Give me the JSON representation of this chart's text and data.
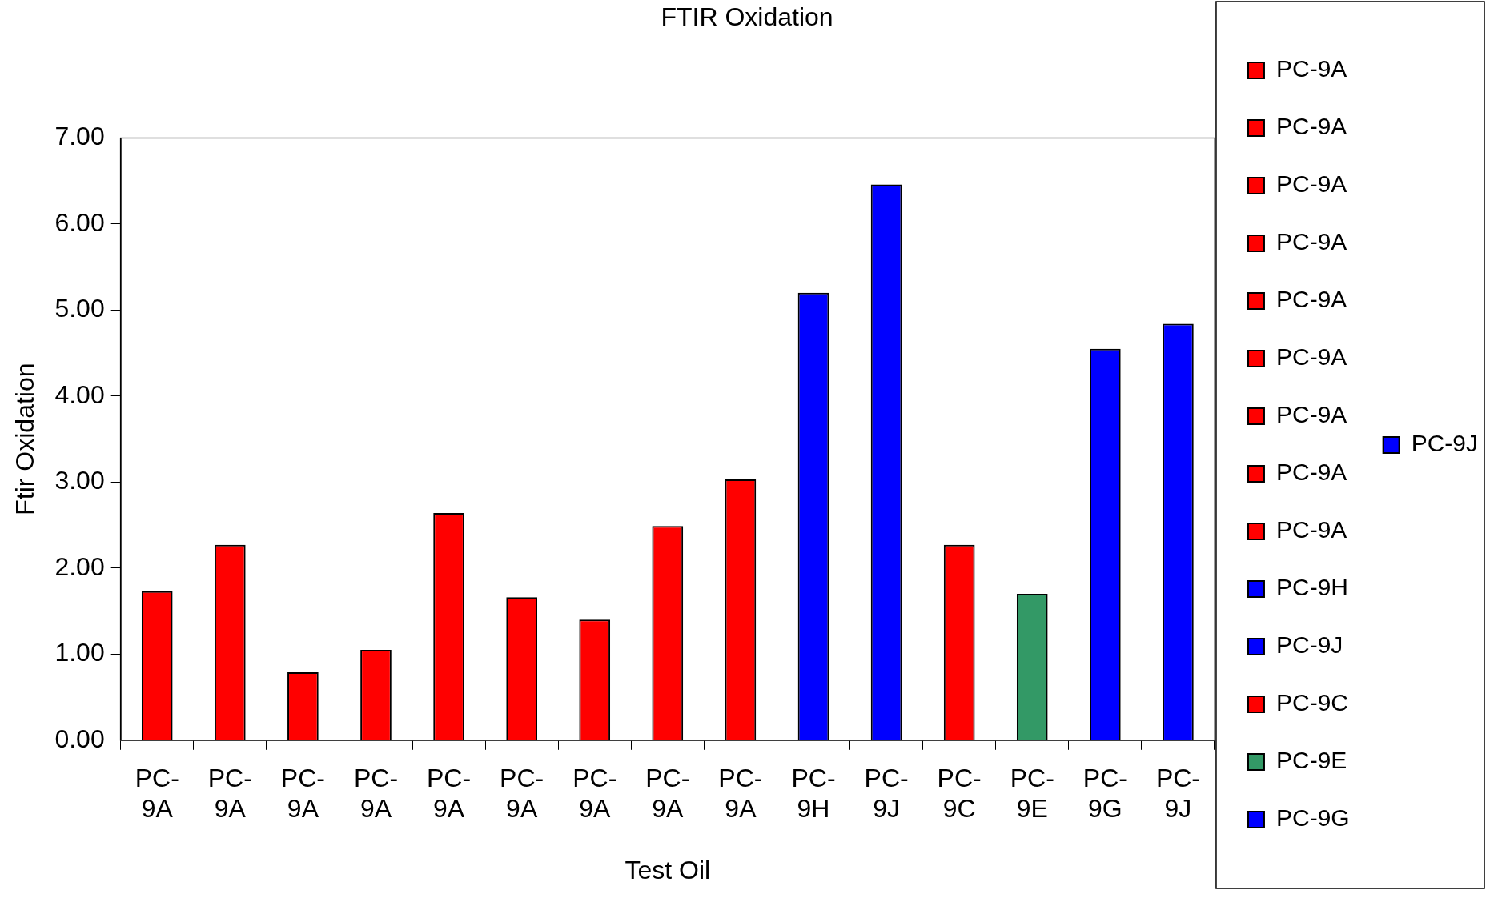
{
  "chart_data": {
    "type": "bar",
    "title": "FTIR Oxidation",
    "xlabel": "Test Oil",
    "ylabel": "Ftir Oxidation",
    "categories": [
      "PC-9A",
      "PC-9A",
      "PC-9A",
      "PC-9A",
      "PC-9A",
      "PC-9A",
      "PC-9A",
      "PC-9A",
      "PC-9A",
      "PC-9H",
      "PC-9J",
      "PC-9C",
      "PC-9E",
      "PC-9G",
      "PC-9J"
    ],
    "series": [
      {
        "name": "PC-9A",
        "color": "#ff0000",
        "values": [
          1.73,
          null,
          null,
          null,
          null,
          null,
          null,
          null,
          null,
          null,
          null,
          null,
          null,
          null,
          null
        ]
      },
      {
        "name": "PC-9A",
        "color": "#ff0000",
        "values": [
          null,
          2.27,
          null,
          null,
          null,
          null,
          null,
          null,
          null,
          null,
          null,
          null,
          null,
          null,
          null
        ]
      },
      {
        "name": "PC-9A",
        "color": "#ff0000",
        "values": [
          null,
          null,
          0.79,
          null,
          null,
          null,
          null,
          null,
          null,
          null,
          null,
          null,
          null,
          null,
          null
        ]
      },
      {
        "name": "PC-9A",
        "color": "#ff0000",
        "values": [
          null,
          null,
          null,
          1.05,
          null,
          null,
          null,
          null,
          null,
          null,
          null,
          null,
          null,
          null,
          null
        ]
      },
      {
        "name": "PC-9A",
        "color": "#ff0000",
        "values": [
          null,
          null,
          null,
          null,
          2.64,
          null,
          null,
          null,
          null,
          null,
          null,
          null,
          null,
          null,
          null
        ]
      },
      {
        "name": "PC-9A",
        "color": "#ff0000",
        "values": [
          null,
          null,
          null,
          null,
          null,
          1.66,
          null,
          null,
          null,
          null,
          null,
          null,
          null,
          null,
          null
        ]
      },
      {
        "name": "PC-9A",
        "color": "#ff0000",
        "values": [
          null,
          null,
          null,
          null,
          null,
          null,
          1.4,
          null,
          null,
          null,
          null,
          null,
          null,
          null,
          null
        ]
      },
      {
        "name": "PC-9A",
        "color": "#ff0000",
        "values": [
          null,
          null,
          null,
          null,
          null,
          null,
          null,
          2.49,
          null,
          null,
          null,
          null,
          null,
          null,
          null
        ]
      },
      {
        "name": "PC-9A",
        "color": "#ff0000",
        "values": [
          null,
          null,
          null,
          null,
          null,
          null,
          null,
          null,
          3.03,
          null,
          null,
          null,
          null,
          null,
          null
        ]
      },
      {
        "name": "PC-9H",
        "color": "#0000ff",
        "values": [
          null,
          null,
          null,
          null,
          null,
          null,
          null,
          null,
          null,
          5.2,
          null,
          null,
          null,
          null,
          null
        ]
      },
      {
        "name": "PC-9J",
        "color": "#0000ff",
        "values": [
          null,
          null,
          null,
          null,
          null,
          null,
          null,
          null,
          null,
          null,
          6.46,
          null,
          null,
          null,
          null
        ]
      },
      {
        "name": "PC-9C",
        "color": "#ff0000",
        "values": [
          null,
          null,
          null,
          null,
          null,
          null,
          null,
          null,
          null,
          null,
          null,
          2.27,
          null,
          null,
          null
        ]
      },
      {
        "name": "PC-9E",
        "color": "#339966",
        "values": [
          null,
          null,
          null,
          null,
          null,
          null,
          null,
          null,
          null,
          null,
          null,
          null,
          1.7,
          null,
          null
        ]
      },
      {
        "name": "PC-9G",
        "color": "#0000ff",
        "values": [
          null,
          null,
          null,
          null,
          null,
          null,
          null,
          null,
          null,
          null,
          null,
          null,
          null,
          4.55,
          null
        ]
      },
      {
        "name": "PC-9J",
        "color": "#0000ff",
        "values": [
          null,
          null,
          null,
          null,
          null,
          null,
          null,
          null,
          null,
          null,
          null,
          null,
          null,
          null,
          4.84
        ]
      }
    ],
    "ylim": [
      0,
      7
    ],
    "yticks": [
      {
        "value": 0,
        "label": "0.00"
      },
      {
        "value": 1,
        "label": "1.00"
      },
      {
        "value": 2,
        "label": "2.00"
      },
      {
        "value": 3,
        "label": "3.00"
      },
      {
        "value": 4,
        "label": "4.00"
      },
      {
        "value": 5,
        "label": "5.00"
      },
      {
        "value": 6,
        "label": "6.00"
      },
      {
        "value": 7,
        "label": "7.00"
      }
    ],
    "grid": false,
    "legend": "right"
  }
}
